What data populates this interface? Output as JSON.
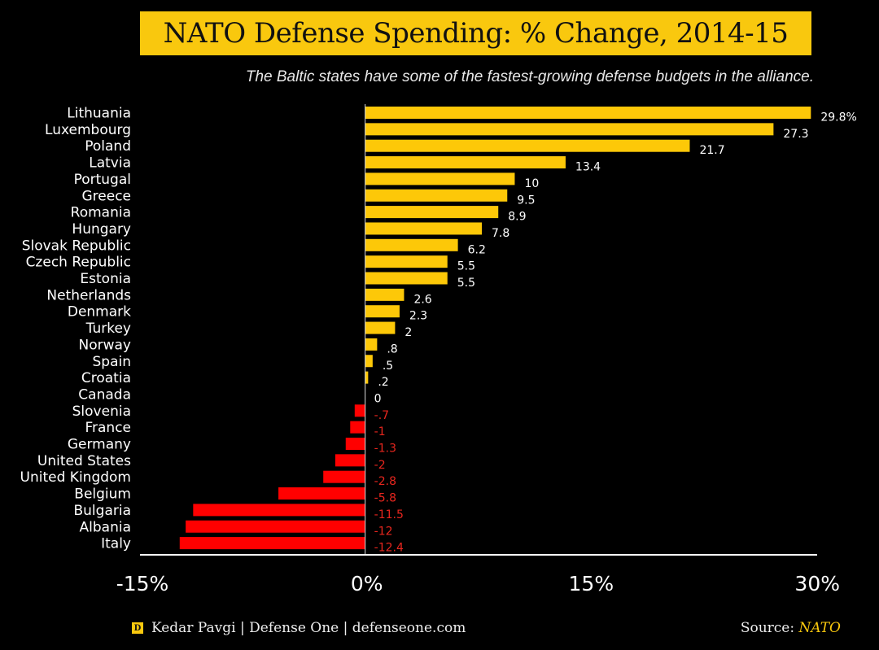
{
  "header": {
    "title": "NATO Defense Spending: % Change, 2014-15",
    "subtitle": "The Baltic states have some of the fastest-growing defense budgets in the alliance."
  },
  "footer": {
    "logo_letter": "D",
    "credit": "Kedar Pavgi | Defense One | defenseone.com",
    "source_label": "Source:",
    "source_name": "NATO"
  },
  "colors": {
    "positive": "#fdc808",
    "negative": "#ff0000",
    "positive_label": "#ffffff",
    "negative_label": "#e8261e",
    "accent": "#f9c80e"
  },
  "chart_data": {
    "type": "bar",
    "orientation": "horizontal",
    "title": "NATO Defense Spending: % Change, 2014-15",
    "subtitle": "The Baltic states have some of the fastest-growing defense budgets in the alliance.",
    "xlabel": "",
    "ylabel": "",
    "xlim": [
      -15,
      30
    ],
    "xticks": [
      -15,
      0,
      15,
      30
    ],
    "xtick_labels": [
      "-15%",
      "0%",
      "15%",
      "30%"
    ],
    "grid": false,
    "categories": [
      "Lithuania",
      "Luxembourg",
      "Poland",
      "Latvia",
      "Portugal",
      "Greece",
      "Romania",
      "Hungary",
      "Slovak Republic",
      "Czech Republic",
      "Estonia",
      "Netherlands",
      "Denmark",
      "Turkey",
      "Norway",
      "Spain",
      "Croatia",
      "Canada",
      "Slovenia",
      "France",
      "Germany",
      "United States",
      "United Kingdom",
      "Belgium",
      "Bulgaria",
      "Albania",
      "Italy"
    ],
    "values": [
      29.8,
      27.3,
      21.7,
      13.4,
      10,
      9.5,
      8.9,
      7.8,
      6.2,
      5.5,
      5.5,
      2.6,
      2.3,
      2,
      0.8,
      0.5,
      0.2,
      0,
      -0.7,
      -1,
      -1.3,
      -2,
      -2.8,
      -5.8,
      -11.5,
      -12,
      -12.4
    ],
    "data_labels": [
      "29.8%",
      "27.3",
      "21.7",
      "13.4",
      "10",
      "9.5",
      "8.9",
      "7.8",
      "6.2",
      "5.5",
      "5.5",
      "2.6",
      "2.3",
      "2",
      ".8",
      ".5",
      ".2",
      "0",
      "-.7",
      "-1",
      "-1.3",
      "-2",
      "-2.8",
      "-5.8",
      "-11.5",
      "-12",
      "-12.4"
    ]
  }
}
